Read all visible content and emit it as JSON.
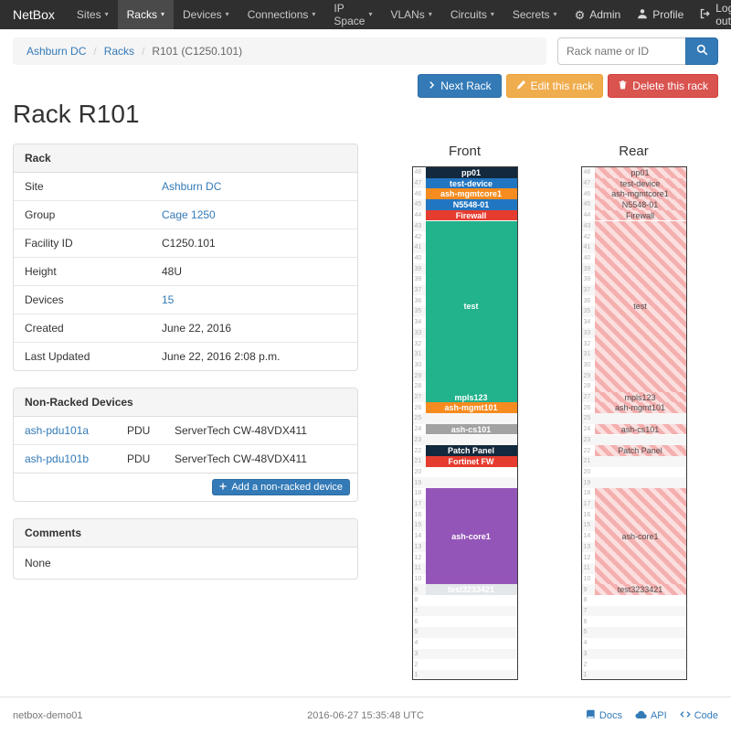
{
  "navbar": {
    "brand": "NetBox",
    "items": [
      {
        "label": "Sites"
      },
      {
        "label": "Racks"
      },
      {
        "label": "Devices"
      },
      {
        "label": "Connections"
      },
      {
        "label": "IP Space"
      },
      {
        "label": "VLANs"
      },
      {
        "label": "Circuits"
      },
      {
        "label": "Secrets"
      }
    ],
    "right": [
      {
        "label": "Admin",
        "icon": "gear-icon"
      },
      {
        "label": "Profile",
        "icon": "person-icon"
      },
      {
        "label": "Log out",
        "icon": "logout-icon"
      }
    ]
  },
  "breadcrumb": {
    "items": [
      {
        "label": "Ashburn DC"
      },
      {
        "label": "Racks"
      },
      {
        "label": "R101 (C1250.101)"
      }
    ]
  },
  "search": {
    "placeholder": "Rack name or ID"
  },
  "actions": {
    "next": "Next Rack",
    "edit": "Edit this rack",
    "delete": "Delete this rack"
  },
  "page_title": "Rack R101",
  "rack_panel": {
    "title": "Rack",
    "rows": [
      {
        "label": "Site",
        "value": "Ashburn DC"
      },
      {
        "label": "Group",
        "value": "Cage 1250"
      },
      {
        "label": "Facility ID",
        "value": "C1250.101"
      },
      {
        "label": "Height",
        "value": "48U"
      },
      {
        "label": "Devices",
        "value": "15"
      },
      {
        "label": "Created",
        "value": "June 22, 2016"
      },
      {
        "label": "Last Updated",
        "value": "June 22, 2016 2:08 p.m."
      }
    ]
  },
  "non_racked": {
    "title": "Non-Racked Devices",
    "rows": [
      {
        "name": "ash-pdu101a",
        "type": "PDU",
        "model": "ServerTech CW-48VDX411"
      },
      {
        "name": "ash-pdu101b",
        "type": "PDU",
        "model": "ServerTech CW-48VDX411"
      }
    ],
    "add_label": "Add a non-racked device"
  },
  "comments": {
    "title": "Comments",
    "body": "None"
  },
  "elevation": {
    "u_height": 48,
    "front_label": "Front",
    "rear_label": "Rear",
    "devices": [
      {
        "name": "pp01",
        "u": 48,
        "height": 1,
        "color": "#13293d"
      },
      {
        "name": "test-device",
        "u": 47,
        "height": 1,
        "color": "#2176c2"
      },
      {
        "name": "ash-mgmtcore1",
        "u": 46,
        "height": 1,
        "color": "#f68b1f"
      },
      {
        "name": "N5548-01",
        "u": 45,
        "height": 1,
        "color": "#2176c2"
      },
      {
        "name": "Firewall",
        "u": 44,
        "height": 1,
        "color": "#e63c2f"
      },
      {
        "name": "test",
        "u": 43,
        "height": 16,
        "color": "#22b28c"
      },
      {
        "name": "mpls123",
        "u": 27,
        "height": 1,
        "color": "#22b28c"
      },
      {
        "name": "ash-mgmt101",
        "u": 26,
        "height": 1,
        "color": "#f68b1f"
      },
      {
        "name": "ash-cs101",
        "u": 24,
        "height": 1,
        "color": "#a2a2a2"
      },
      {
        "name": "Patch Panel",
        "u": 22,
        "height": 1,
        "color": "#13293d"
      },
      {
        "name": "Fortinet FW",
        "u": 21,
        "height": 1,
        "color": "#e63c2f",
        "show_rear": false
      },
      {
        "name": "ash-core1",
        "u": 18,
        "height": 9,
        "color": "#9455b8"
      },
      {
        "name": "test3233421",
        "u": 9,
        "height": 1,
        "color": "#e4e7ea",
        "text_color": "#ffffff"
      }
    ]
  },
  "footer": {
    "hostname": "netbox-demo01",
    "timestamp": "2016-06-27 15:35:48 UTC",
    "links": [
      {
        "label": "Docs",
        "icon": "book-icon"
      },
      {
        "label": "API",
        "icon": "cloud-icon"
      },
      {
        "label": "Code",
        "icon": "code-icon"
      }
    ]
  },
  "colors": {
    "primary": "#337ab7",
    "warning": "#f0ad4e",
    "danger": "#d9534f",
    "navbar_bg": "#2f2f2f",
    "rear_stripe_dark": "#f4afaf",
    "rear_stripe_light": "#fbdfdf"
  }
}
